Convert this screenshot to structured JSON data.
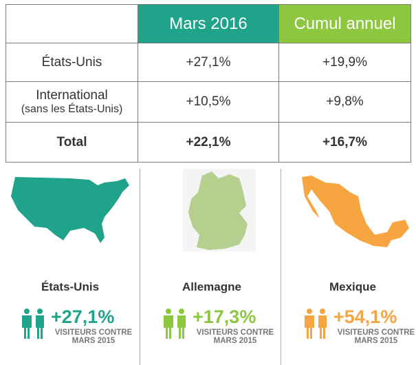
{
  "colors": {
    "teal": "#1fa38a",
    "green": "#8dc63f",
    "orange": "#f7a541"
  },
  "table": {
    "headers": [
      "",
      "Mars 2016",
      "Cumul annuel"
    ],
    "rows": [
      {
        "label": "États-Unis",
        "label2": "",
        "mars": "+27,1%",
        "cumul": "+19,9%"
      },
      {
        "label": "International",
        "label2": "(sans les États-Unis)",
        "mars": "+10,5%",
        "cumul": "+9,8%"
      },
      {
        "label": "Total",
        "label2": "",
        "mars": "+22,1%",
        "cumul": "+16,7%"
      }
    ]
  },
  "panels": [
    {
      "country": "États-Unis",
      "pct": "+27,1%",
      "sub1": "VISITEURS CONTRE",
      "sub2": "MARS 2015",
      "icon": "people-icon",
      "map": "usa-map"
    },
    {
      "country": "Allemagne",
      "pct": "+17,3%",
      "sub1": "VISITEURS CONTRE",
      "sub2": "MARS 2015",
      "icon": "people-icon",
      "map": "germany-map"
    },
    {
      "country": "Mexique",
      "pct": "+54,1%",
      "sub1": "VISITEURS CONTRE",
      "sub2": "MARS 2015",
      "icon": "people-icon",
      "map": "mexico-map"
    }
  ]
}
